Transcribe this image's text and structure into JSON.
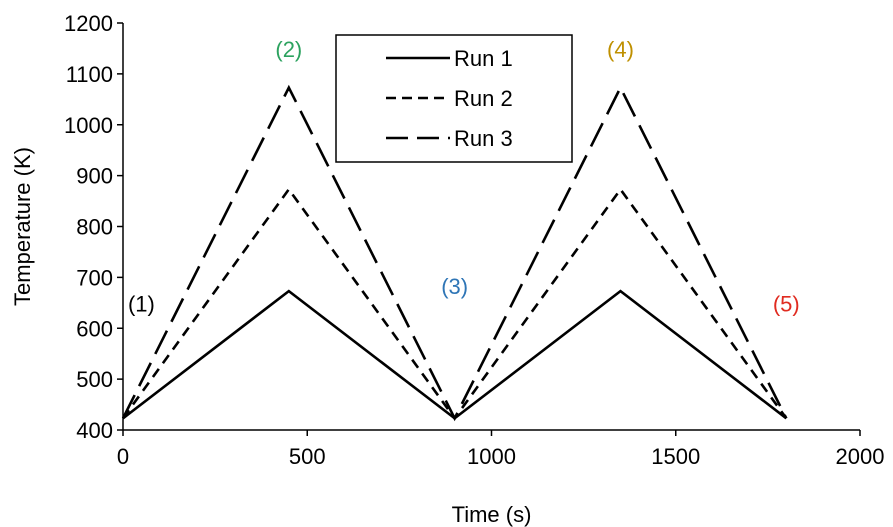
{
  "chart_data": {
    "type": "line",
    "title": "",
    "xlabel": "Time (s)",
    "ylabel": "Temperature (K)",
    "xlim": [
      0,
      2000
    ],
    "ylim": [
      400,
      1200
    ],
    "xticks": [
      0,
      500,
      1000,
      1500,
      2000
    ],
    "yticks": [
      400,
      500,
      600,
      700,
      800,
      900,
      1000,
      1100,
      1200
    ],
    "grid": false,
    "legend_position": "top-center",
    "series": [
      {
        "name": "Run 1",
        "style": "solid",
        "color": "#000000",
        "x": [
          0,
          450,
          900,
          1350,
          1800
        ],
        "y": [
          423,
          673,
          423,
          673,
          423
        ]
      },
      {
        "name": "Run 2",
        "style": "dashed",
        "color": "#000000",
        "x": [
          0,
          450,
          900,
          1350,
          1800
        ],
        "y": [
          423,
          873,
          423,
          873,
          423
        ]
      },
      {
        "name": "Run 3",
        "style": "long-dashed",
        "color": "#000000",
        "x": [
          0,
          450,
          900,
          1350,
          1800
        ],
        "y": [
          423,
          1073,
          423,
          1073,
          423
        ]
      }
    ],
    "annotations": [
      {
        "text": "(1)",
        "x": 50,
        "y": 633,
        "color": "#000000"
      },
      {
        "text": "(2)",
        "x": 450,
        "y": 1133,
        "color": "#2ca25f"
      },
      {
        "text": "(3)",
        "x": 900,
        "y": 667,
        "color": "#2e75b6"
      },
      {
        "text": "(4)",
        "x": 1350,
        "y": 1133,
        "color": "#bf9000"
      },
      {
        "text": "(5)",
        "x": 1800,
        "y": 633,
        "color": "#e02b20"
      }
    ]
  }
}
